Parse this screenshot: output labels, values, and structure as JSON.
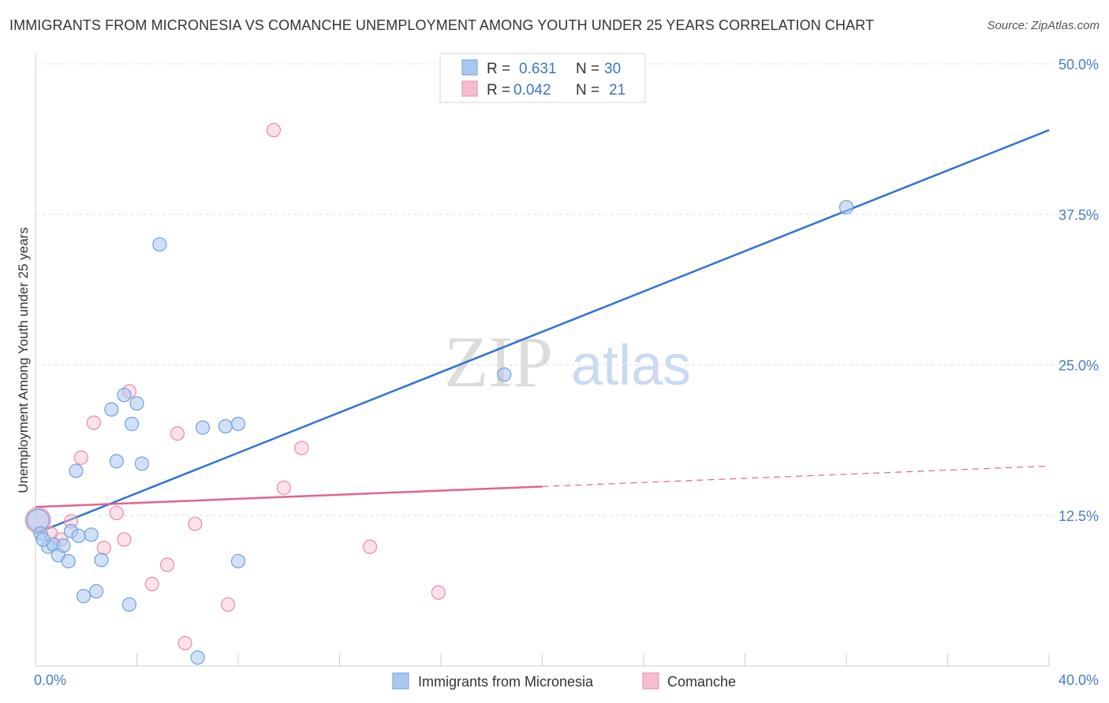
{
  "header": {
    "title": "IMMIGRANTS FROM MICRONESIA VS COMANCHE UNEMPLOYMENT AMONG YOUTH UNDER 25 YEARS CORRELATION CHART",
    "source": "Source: ZipAtlas.com"
  },
  "watermark": {
    "zip": "ZIP",
    "atlas": "atlas"
  },
  "legend": {
    "rows": [
      {
        "r_label": "R =",
        "r_value": "0.631",
        "n_label": "N =",
        "n_value": "30"
      },
      {
        "r_label": "R =",
        "r_value": "0.042",
        "n_label": "N =",
        "n_value": "21"
      }
    ]
  },
  "colors": {
    "blue_fill": "#a9c8f0",
    "blue_stroke": "#6f9fdc",
    "blue_line": "#2f74d0",
    "pink_fill": "#f6bcd0",
    "pink_stroke": "#e88aaa",
    "pink_line": "#e0648e",
    "grid": "#dddddd",
    "tick_text": "#4a7cc9"
  },
  "chart_data": {
    "type": "scatter",
    "title": "IMMIGRANTS FROM MICRONESIA VS COMANCHE UNEMPLOYMENT AMONG YOUTH UNDER 25 YEARS CORRELATION CHART",
    "xlabel": "",
    "ylabel": "Unemployment Among Youth under 25 years",
    "xlim": [
      0,
      40
    ],
    "ylim": [
      0,
      50
    ],
    "x_tick_labels": [
      "0.0%",
      "40.0%"
    ],
    "y_ticks": [
      12.5,
      25.0,
      37.5,
      50.0
    ],
    "y_tick_labels": [
      "12.5%",
      "25.0%",
      "37.5%",
      "50.0%"
    ],
    "grid": true,
    "legend_placement": "top-center",
    "series": [
      {
        "name": "Immigrants from Micronesia",
        "points": [
          [
            0.1,
            12.1
          ],
          [
            0.2,
            11.0
          ],
          [
            0.5,
            9.9
          ],
          [
            0.7,
            10.1
          ],
          [
            0.9,
            9.2
          ],
          [
            1.1,
            10.0
          ],
          [
            1.3,
            8.7
          ],
          [
            1.4,
            11.2
          ],
          [
            1.6,
            16.2
          ],
          [
            1.7,
            10.8
          ],
          [
            1.9,
            5.8
          ],
          [
            2.2,
            10.9
          ],
          [
            2.4,
            6.2
          ],
          [
            2.6,
            8.8
          ],
          [
            3.0,
            21.3
          ],
          [
            3.2,
            17.0
          ],
          [
            3.5,
            22.5
          ],
          [
            3.7,
            5.1
          ],
          [
            3.8,
            20.1
          ],
          [
            4.0,
            21.8
          ],
          [
            4.2,
            16.8
          ],
          [
            4.9,
            35.0
          ],
          [
            6.4,
            0.7
          ],
          [
            6.6,
            19.8
          ],
          [
            7.5,
            19.9
          ],
          [
            8.0,
            20.1
          ],
          [
            8.0,
            8.7
          ],
          [
            18.5,
            24.2
          ],
          [
            32.0,
            38.1
          ],
          [
            0.3,
            10.5
          ]
        ],
        "trend": {
          "x": [
            0,
            40
          ],
          "y": [
            11.0,
            44.5
          ]
        }
      },
      {
        "name": "Comanche",
        "points": [
          [
            0.1,
            12.1
          ],
          [
            0.6,
            11.0
          ],
          [
            1.0,
            10.5
          ],
          [
            1.4,
            12.0
          ],
          [
            1.8,
            17.3
          ],
          [
            2.3,
            20.2
          ],
          [
            2.7,
            9.8
          ],
          [
            3.2,
            12.7
          ],
          [
            3.5,
            10.5
          ],
          [
            3.7,
            22.8
          ],
          [
            4.6,
            6.8
          ],
          [
            5.2,
            8.4
          ],
          [
            5.6,
            19.3
          ],
          [
            5.9,
            1.9
          ],
          [
            6.3,
            11.8
          ],
          [
            7.6,
            5.1
          ],
          [
            9.4,
            44.5
          ],
          [
            9.8,
            14.8
          ],
          [
            10.5,
            18.1
          ],
          [
            13.2,
            9.9
          ],
          [
            15.9,
            6.1
          ]
        ],
        "trend": {
          "x": [
            0,
            20
          ],
          "y": [
            13.2,
            14.9
          ]
        },
        "trend_extension": {
          "x": [
            20,
            40
          ],
          "y": [
            14.9,
            16.6
          ]
        }
      }
    ]
  },
  "bottom_legend": {
    "items": [
      {
        "label": "Immigrants from Micronesia"
      },
      {
        "label": "Comanche"
      }
    ]
  }
}
